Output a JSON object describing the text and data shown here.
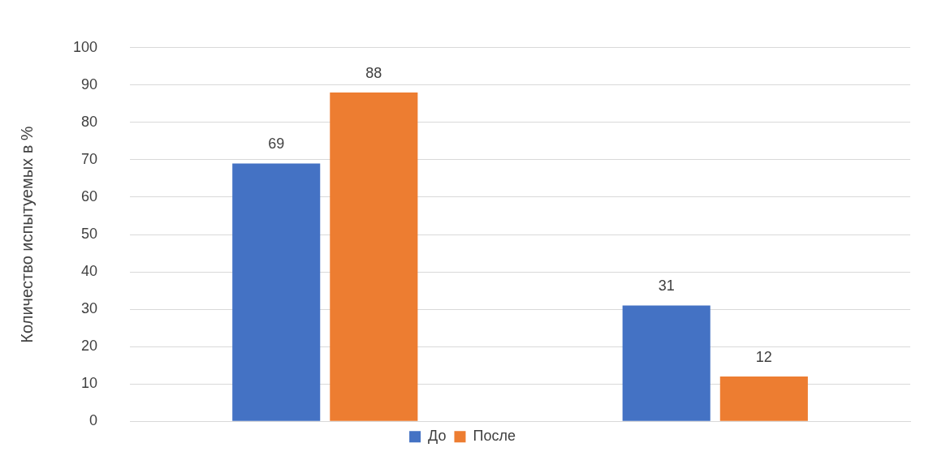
{
  "chart_data": {
    "type": "bar",
    "ylabel": "Количество испытуемых в %",
    "categories": [
      null,
      null
    ],
    "series": [
      {
        "name": "До",
        "color": "#4472c4",
        "values": [
          69,
          31
        ]
      },
      {
        "name": "После",
        "color": "#ed7d31",
        "values": [
          88,
          12
        ]
      }
    ],
    "ylim": [
      0,
      100
    ],
    "yticks": [
      0,
      10,
      20,
      30,
      40,
      50,
      60,
      70,
      80,
      90,
      100
    ],
    "grid": "y",
    "legend": "bottom",
    "data_labels": true,
    "tick_labels": "y"
  }
}
